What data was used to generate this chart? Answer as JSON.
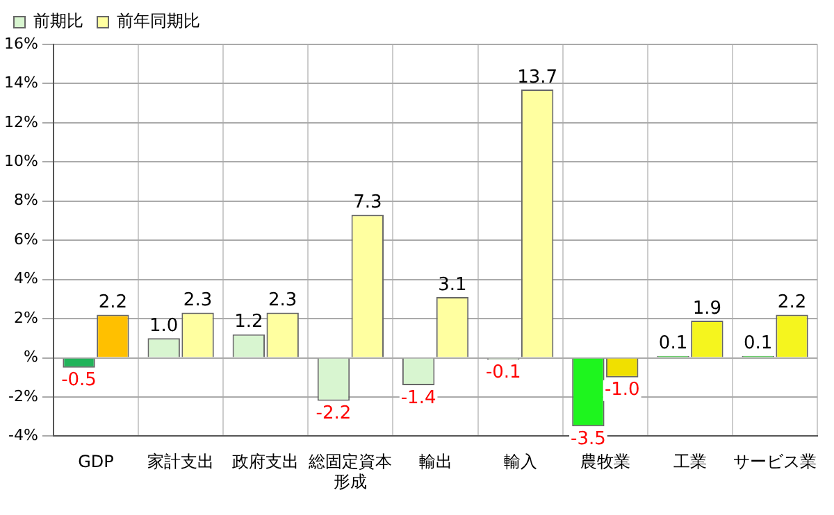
{
  "chart_data": {
    "type": "bar",
    "categories": [
      "GDP",
      "家計支出",
      "政府支出",
      "総固定資本形成",
      "輸出",
      "輸入",
      "農牧業",
      "工業",
      "サービス業"
    ],
    "series": [
      {
        "name": "前期比",
        "color": "#d8f5d0",
        "colors": [
          "#22b35a",
          "#d8f5d0",
          "#d8f5d0",
          "#d8f5d0",
          "#d8f5d0",
          "#d8f5d0",
          "#1ef51e",
          "#22dd22",
          "#22dd22"
        ],
        "values": [
          -0.5,
          1.0,
          1.2,
          -2.2,
          -1.4,
          -0.1,
          -3.5,
          0.1,
          0.1
        ],
        "value_labels": [
          "-0.5",
          "1.0",
          "1.2",
          "-2.2",
          "-1.4",
          "-0.1",
          "-3.5",
          "0.1",
          "0.1"
        ]
      },
      {
        "name": "前年同期比",
        "color": "#ffffa0",
        "colors": [
          "#ffc000",
          "#ffffa0",
          "#ffffa0",
          "#ffffa0",
          "#ffffa0",
          "#ffffa0",
          "#f0e000",
          "#f5f51e",
          "#f5f51e"
        ],
        "values": [
          2.2,
          2.3,
          2.3,
          7.3,
          3.1,
          13.7,
          -1.0,
          1.9,
          2.2
        ],
        "value_labels": [
          "2.2",
          "2.3",
          "2.3",
          "7.3",
          "3.1",
          "13.7",
          "-1.0",
          "1.9",
          "2.2"
        ]
      }
    ],
    "ylim": [
      -4,
      16
    ],
    "yticks": [
      {
        "value": -4,
        "label": "-4%"
      },
      {
        "value": -2,
        "label": "-2%"
      },
      {
        "value": 0,
        "label": "%"
      },
      {
        "value": 2,
        "label": "2%"
      },
      {
        "value": 4,
        "label": "4%"
      },
      {
        "value": 6,
        "label": "6%"
      },
      {
        "value": 8,
        "label": "8%"
      },
      {
        "value": 10,
        "label": "10%"
      },
      {
        "value": 12,
        "label": "12%"
      },
      {
        "value": 14,
        "label": "14%"
      },
      {
        "value": 16,
        "label": "16%"
      }
    ],
    "grid": true,
    "legend": "top left"
  }
}
